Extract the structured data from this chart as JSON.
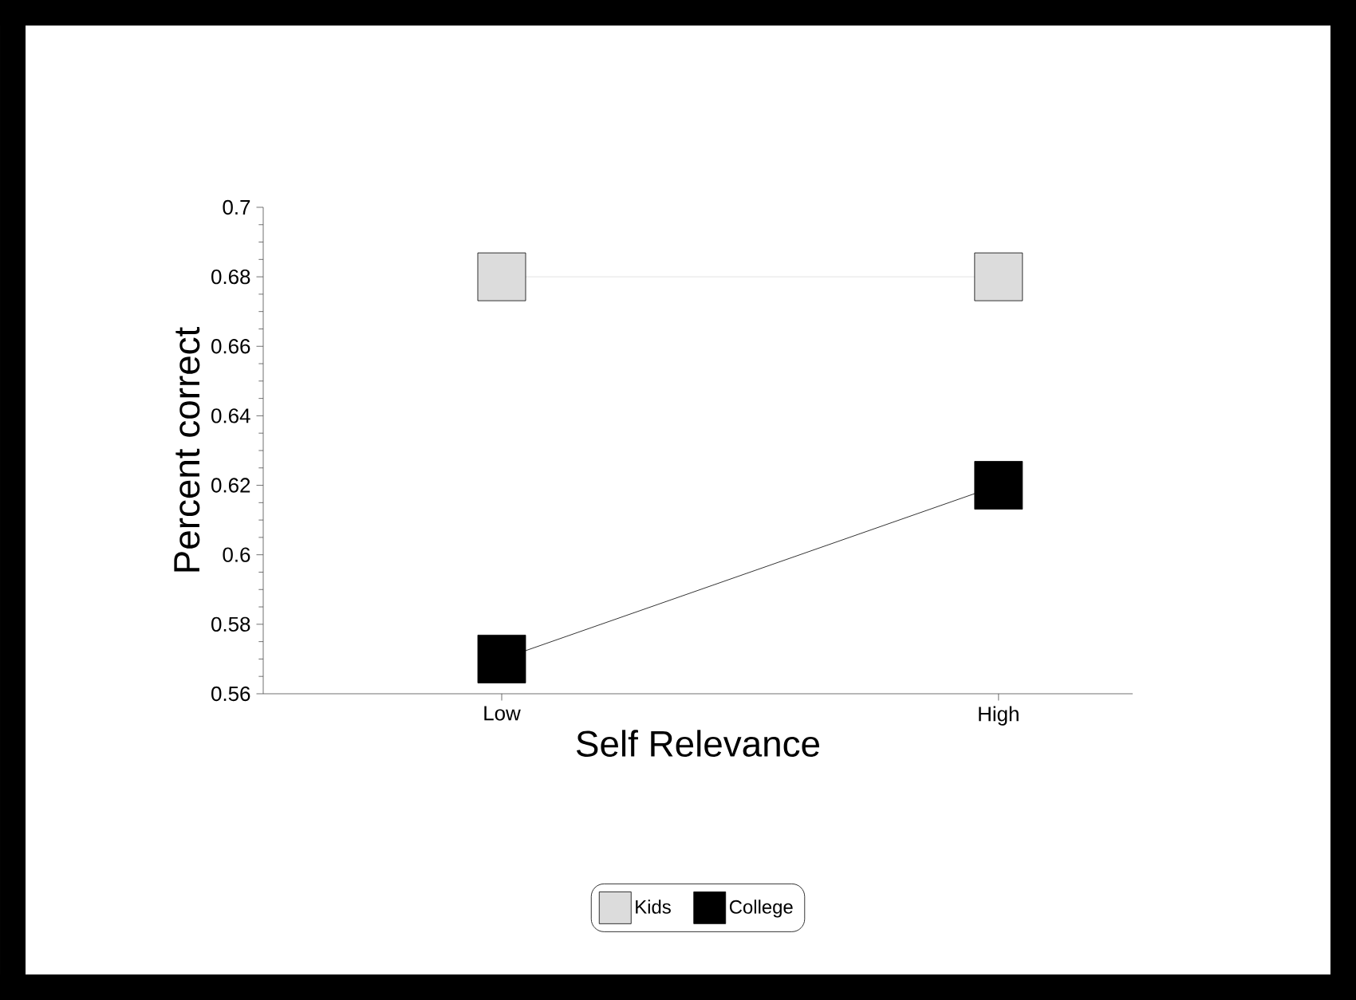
{
  "chart_data": {
    "type": "line",
    "xlabel": "Self Relevance",
    "ylabel": "Percent correct",
    "categories": [
      "Low",
      "High"
    ],
    "series": [
      {
        "name": "Kids",
        "color": "#dcdcdc",
        "values": [
          0.68,
          0.68
        ]
      },
      {
        "name": "College",
        "color": "#000000",
        "values": [
          0.57,
          0.62
        ]
      }
    ],
    "ylim": [
      0.56,
      0.7
    ],
    "yticks": [
      0.56,
      0.58,
      0.6,
      0.62,
      0.64,
      0.66,
      0.68,
      0.7
    ],
    "marker": "square",
    "line_style": "solid",
    "legend": "bottom"
  }
}
